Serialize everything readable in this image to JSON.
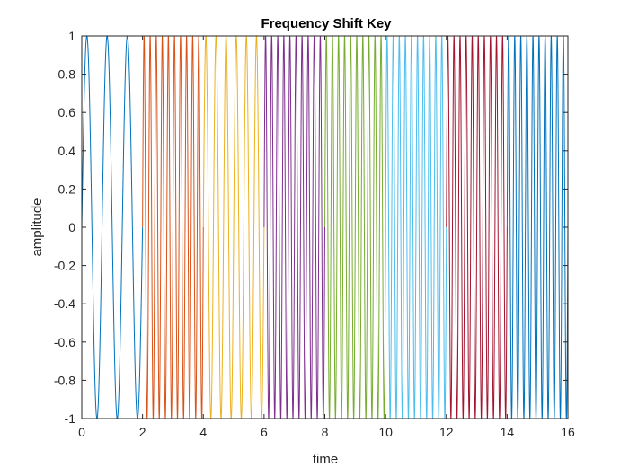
{
  "chart_data": {
    "type": "line",
    "title": "Frequency Shift Key",
    "xlabel": "time",
    "ylabel": "amplitude",
    "xlim": [
      0,
      16
    ],
    "ylim": [
      -1,
      1
    ],
    "xticks": [
      "0",
      "2",
      "4",
      "6",
      "8",
      "10",
      "12",
      "14",
      "16"
    ],
    "yticks": [
      "-1",
      "-0.8",
      "-0.6",
      "-0.4",
      "-0.2",
      "0",
      "0.2",
      "0.4",
      "0.6",
      "0.8",
      "1"
    ],
    "grid": false,
    "legend": "none",
    "function": "sin(2*pi*f*t)",
    "series": [
      {
        "t_range": [
          0,
          2
        ],
        "frequency": 1.5,
        "color": "#0072BD"
      },
      {
        "t_range": [
          2,
          4
        ],
        "frequency": 5,
        "color": "#D95319"
      },
      {
        "t_range": [
          4,
          6
        ],
        "frequency": 3,
        "color": "#EDB120"
      },
      {
        "t_range": [
          6,
          8
        ],
        "frequency": 5,
        "color": "#7E2F8E"
      },
      {
        "t_range": [
          8,
          10
        ],
        "frequency": 5,
        "color": "#77AC30"
      },
      {
        "t_range": [
          10,
          12
        ],
        "frequency": 5,
        "color": "#4DBEEE"
      },
      {
        "t_range": [
          12,
          14
        ],
        "frequency": 5,
        "color": "#A2142F"
      },
      {
        "t_range": [
          14,
          16
        ],
        "frequency": 5,
        "color": "#0072BD"
      }
    ]
  }
}
